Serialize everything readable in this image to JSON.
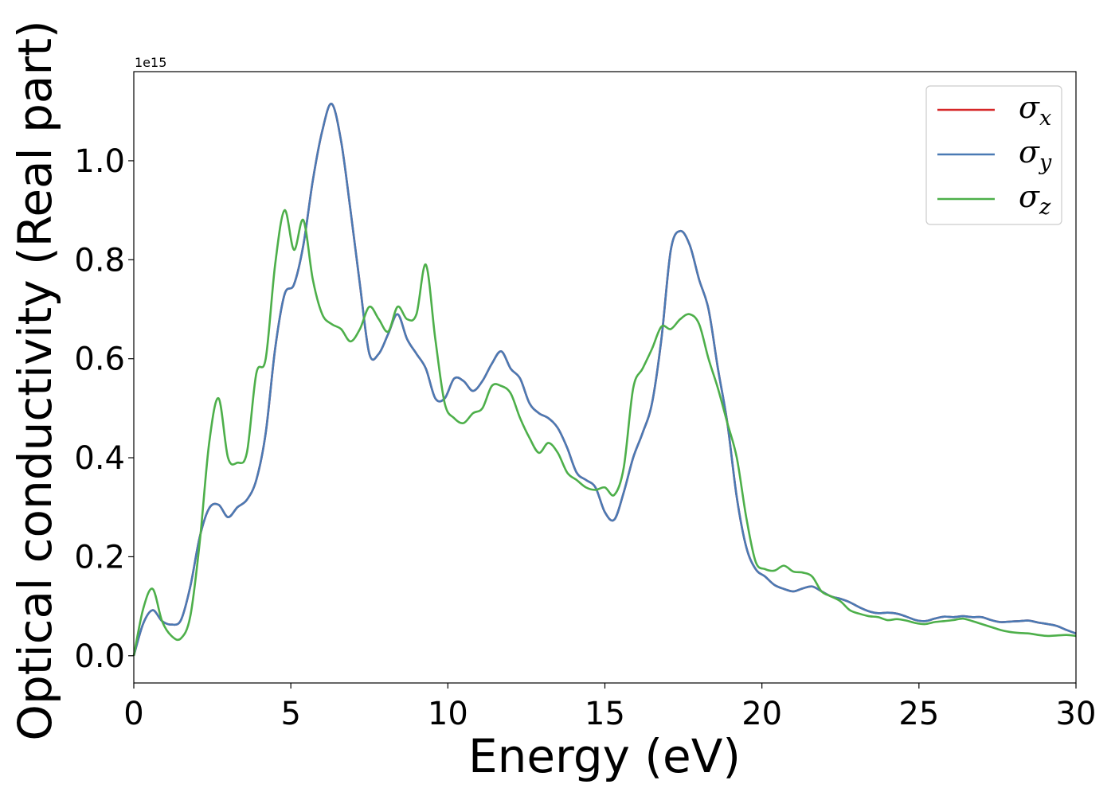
{
  "chart_data": {
    "type": "line",
    "title": "",
    "xlabel": "Energy (eV)",
    "ylabel": "Optical conductivity (Real part)",
    "y_offset_label": "1e15",
    "xlim": [
      0,
      30
    ],
    "ylim": [
      -0.055,
      1.18
    ],
    "x_ticks": [
      0,
      5,
      10,
      15,
      20,
      25,
      30
    ],
    "x_tick_labels": [
      "0",
      "5",
      "10",
      "15",
      "20",
      "25",
      "30"
    ],
    "y_ticks": [
      0.0,
      0.2,
      0.4,
      0.6,
      0.8,
      1.0
    ],
    "y_tick_labels": [
      "0.0",
      "0.2",
      "0.4",
      "0.6",
      "0.8",
      "1.0"
    ],
    "grid": false,
    "legend_position": "top-right",
    "x": [
      0,
      0.3,
      0.6,
      0.9,
      1.2,
      1.5,
      1.8,
      2.1,
      2.4,
      2.7,
      3.0,
      3.3,
      3.6,
      3.9,
      4.2,
      4.5,
      4.8,
      5.1,
      5.4,
      5.7,
      6.0,
      6.3,
      6.6,
      6.9,
      7.2,
      7.5,
      7.8,
      8.1,
      8.4,
      8.7,
      9.0,
      9.3,
      9.6,
      9.9,
      10.2,
      10.5,
      10.8,
      11.1,
      11.4,
      11.7,
      12.0,
      12.3,
      12.6,
      12.9,
      13.2,
      13.5,
      13.8,
      14.1,
      14.4,
      14.7,
      15.0,
      15.3,
      15.6,
      15.9,
      16.2,
      16.5,
      16.8,
      17.1,
      17.4,
      17.7,
      18.0,
      18.3,
      18.6,
      18.9,
      19.2,
      19.5,
      19.8,
      20.1,
      20.4,
      20.7,
      21.0,
      21.3,
      21.6,
      21.9,
      22.2,
      22.5,
      22.8,
      23.1,
      23.4,
      23.7,
      24.0,
      24.3,
      24.6,
      24.9,
      25.2,
      25.5,
      25.8,
      26.1,
      26.4,
      26.7,
      27.0,
      27.3,
      27.6,
      27.9,
      28.2,
      28.5,
      28.8,
      29.1,
      29.4,
      29.7,
      30.0
    ],
    "series": [
      {
        "name": "σx",
        "color": "#d62728",
        "values": [
          0.0,
          0.065,
          0.092,
          0.07,
          0.063,
          0.072,
          0.14,
          0.24,
          0.298,
          0.305,
          0.28,
          0.3,
          0.315,
          0.355,
          0.45,
          0.62,
          0.73,
          0.75,
          0.83,
          0.96,
          1.06,
          1.115,
          1.04,
          0.9,
          0.75,
          0.61,
          0.61,
          0.65,
          0.69,
          0.64,
          0.61,
          0.58,
          0.52,
          0.52,
          0.56,
          0.555,
          0.535,
          0.555,
          0.59,
          0.615,
          0.58,
          0.56,
          0.51,
          0.49,
          0.48,
          0.46,
          0.42,
          0.37,
          0.355,
          0.34,
          0.29,
          0.275,
          0.33,
          0.4,
          0.45,
          0.51,
          0.64,
          0.82,
          0.858,
          0.83,
          0.76,
          0.7,
          0.58,
          0.47,
          0.32,
          0.22,
          0.175,
          0.16,
          0.143,
          0.135,
          0.13,
          0.136,
          0.14,
          0.13,
          0.12,
          0.115,
          0.108,
          0.098,
          0.09,
          0.086,
          0.087,
          0.085,
          0.079,
          0.072,
          0.07,
          0.075,
          0.079,
          0.078,
          0.08,
          0.078,
          0.078,
          0.072,
          0.068,
          0.069,
          0.07,
          0.071,
          0.067,
          0.064,
          0.06,
          0.052,
          0.045
        ]
      },
      {
        "name": "σy",
        "color": "#4a7ab4",
        "values": [
          0.0,
          0.065,
          0.092,
          0.07,
          0.063,
          0.072,
          0.14,
          0.24,
          0.298,
          0.305,
          0.28,
          0.3,
          0.315,
          0.355,
          0.45,
          0.62,
          0.73,
          0.75,
          0.83,
          0.96,
          1.06,
          1.115,
          1.04,
          0.9,
          0.75,
          0.61,
          0.61,
          0.65,
          0.69,
          0.64,
          0.61,
          0.58,
          0.52,
          0.52,
          0.56,
          0.555,
          0.535,
          0.555,
          0.59,
          0.615,
          0.58,
          0.56,
          0.51,
          0.49,
          0.48,
          0.46,
          0.42,
          0.37,
          0.355,
          0.34,
          0.29,
          0.275,
          0.33,
          0.4,
          0.45,
          0.51,
          0.64,
          0.82,
          0.858,
          0.83,
          0.76,
          0.7,
          0.58,
          0.47,
          0.32,
          0.22,
          0.175,
          0.16,
          0.143,
          0.135,
          0.13,
          0.136,
          0.14,
          0.13,
          0.12,
          0.115,
          0.108,
          0.098,
          0.09,
          0.086,
          0.087,
          0.085,
          0.079,
          0.072,
          0.07,
          0.075,
          0.079,
          0.078,
          0.08,
          0.078,
          0.078,
          0.072,
          0.068,
          0.069,
          0.07,
          0.071,
          0.067,
          0.064,
          0.06,
          0.052,
          0.045
        ]
      },
      {
        "name": "σz",
        "color": "#4daf4a",
        "values": [
          0.0,
          0.095,
          0.135,
          0.07,
          0.04,
          0.035,
          0.08,
          0.23,
          0.43,
          0.52,
          0.4,
          0.39,
          0.41,
          0.57,
          0.6,
          0.79,
          0.9,
          0.82,
          0.88,
          0.76,
          0.69,
          0.67,
          0.66,
          0.635,
          0.66,
          0.705,
          0.68,
          0.655,
          0.705,
          0.68,
          0.69,
          0.79,
          0.64,
          0.51,
          0.48,
          0.47,
          0.49,
          0.5,
          0.545,
          0.545,
          0.53,
          0.48,
          0.44,
          0.41,
          0.43,
          0.41,
          0.37,
          0.355,
          0.34,
          0.335,
          0.34,
          0.325,
          0.38,
          0.54,
          0.58,
          0.62,
          0.665,
          0.66,
          0.68,
          0.69,
          0.67,
          0.6,
          0.54,
          0.47,
          0.4,
          0.28,
          0.19,
          0.175,
          0.172,
          0.182,
          0.17,
          0.168,
          0.16,
          0.13,
          0.12,
          0.11,
          0.092,
          0.085,
          0.08,
          0.078,
          0.072,
          0.074,
          0.071,
          0.066,
          0.064,
          0.068,
          0.07,
          0.072,
          0.075,
          0.07,
          0.064,
          0.058,
          0.052,
          0.048,
          0.046,
          0.045,
          0.042,
          0.04,
          0.041,
          0.042,
          0.04
        ]
      }
    ]
  }
}
